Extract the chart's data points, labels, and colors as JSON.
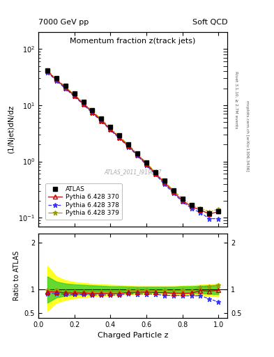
{
  "title": "Momentum fraction z(track jets)",
  "top_left_label": "7000 GeV pp",
  "top_right_label": "Soft QCD",
  "ylabel_main": "(1/Njet)dN/dz",
  "ylabel_ratio": "Ratio to ATLAS",
  "xlabel": "Charged Particle z",
  "watermark": "ATLAS_2011_I919017",
  "right_label_top": "Rivet 3.1.10, ≥ 2.7M events",
  "right_label_bot": "mcplots.cern.ch [arXiv:1306.3436]",
  "xlim": [
    0.0,
    1.05
  ],
  "ylim_main": [
    0.07,
    200
  ],
  "ylim_ratio": [
    0.4,
    2.2
  ],
  "z_values": [
    0.05,
    0.1,
    0.15,
    0.2,
    0.25,
    0.3,
    0.35,
    0.4,
    0.45,
    0.5,
    0.55,
    0.6,
    0.65,
    0.7,
    0.75,
    0.8,
    0.85,
    0.9,
    0.95,
    1.0
  ],
  "atlas_y": [
    42,
    30,
    22,
    16,
    11.5,
    8.2,
    5.8,
    4.1,
    2.9,
    2.0,
    1.4,
    0.95,
    0.65,
    0.45,
    0.31,
    0.22,
    0.17,
    0.14,
    0.12,
    0.13
  ],
  "py370_y": [
    40,
    28.5,
    20.5,
    14.8,
    10.7,
    7.5,
    5.35,
    3.75,
    2.65,
    1.88,
    1.32,
    0.9,
    0.61,
    0.42,
    0.285,
    0.202,
    0.157,
    0.137,
    0.116,
    0.128
  ],
  "py378_y": [
    38.5,
    27.5,
    19.8,
    14.3,
    10.3,
    7.25,
    5.15,
    3.62,
    2.57,
    1.82,
    1.27,
    0.862,
    0.586,
    0.394,
    0.272,
    0.192,
    0.147,
    0.122,
    0.096,
    0.096
  ],
  "py379_y": [
    41.5,
    29.5,
    21.2,
    15.3,
    11.1,
    7.85,
    5.6,
    3.93,
    2.78,
    1.97,
    1.38,
    0.94,
    0.638,
    0.444,
    0.303,
    0.217,
    0.167,
    0.147,
    0.127,
    0.142
  ],
  "ratio_370": [
    0.952,
    0.95,
    0.932,
    0.925,
    0.93,
    0.915,
    0.922,
    0.915,
    0.914,
    0.94,
    0.943,
    0.947,
    0.938,
    0.933,
    0.919,
    0.918,
    0.924,
    0.979,
    0.967,
    0.985
  ],
  "ratio_378": [
    0.917,
    0.917,
    0.9,
    0.894,
    0.896,
    0.884,
    0.888,
    0.883,
    0.886,
    0.91,
    0.907,
    0.907,
    0.902,
    0.876,
    0.877,
    0.873,
    0.865,
    0.871,
    0.8,
    0.738
  ],
  "ratio_379": [
    0.988,
    0.983,
    0.964,
    0.956,
    0.965,
    0.957,
    0.966,
    0.959,
    0.959,
    0.985,
    0.986,
    0.989,
    0.982,
    0.987,
    0.977,
    0.986,
    0.982,
    1.05,
    1.058,
    1.092
  ],
  "band_yellow_lo": [
    0.55,
    0.72,
    0.78,
    0.82,
    0.84,
    0.86,
    0.87,
    0.88,
    0.89,
    0.9,
    0.91,
    0.91,
    0.91,
    0.91,
    0.91,
    0.9,
    0.89,
    0.88,
    0.87,
    0.85
  ],
  "band_yellow_hi": [
    1.5,
    1.28,
    1.2,
    1.16,
    1.14,
    1.12,
    1.11,
    1.1,
    1.09,
    1.08,
    1.07,
    1.07,
    1.07,
    1.07,
    1.07,
    1.08,
    1.09,
    1.1,
    1.11,
    1.13
  ],
  "band_green_lo": [
    0.72,
    0.83,
    0.87,
    0.89,
    0.9,
    0.91,
    0.92,
    0.93,
    0.93,
    0.935,
    0.94,
    0.94,
    0.94,
    0.94,
    0.94,
    0.93,
    0.93,
    0.92,
    0.91,
    0.9
  ],
  "band_green_hi": [
    1.28,
    1.17,
    1.13,
    1.11,
    1.1,
    1.09,
    1.08,
    1.07,
    1.07,
    1.065,
    1.06,
    1.06,
    1.06,
    1.06,
    1.06,
    1.07,
    1.07,
    1.08,
    1.09,
    1.1
  ],
  "color_atlas": "#000000",
  "color_370": "#cc0000",
  "color_378": "#3333ff",
  "color_379": "#999900",
  "bg_color": "#ffffff",
  "label_370": "Pythia 6.428 370",
  "label_378": "Pythia 6.428 378",
  "label_379": "Pythia 6.428 379",
  "label_atlas": "ATLAS"
}
